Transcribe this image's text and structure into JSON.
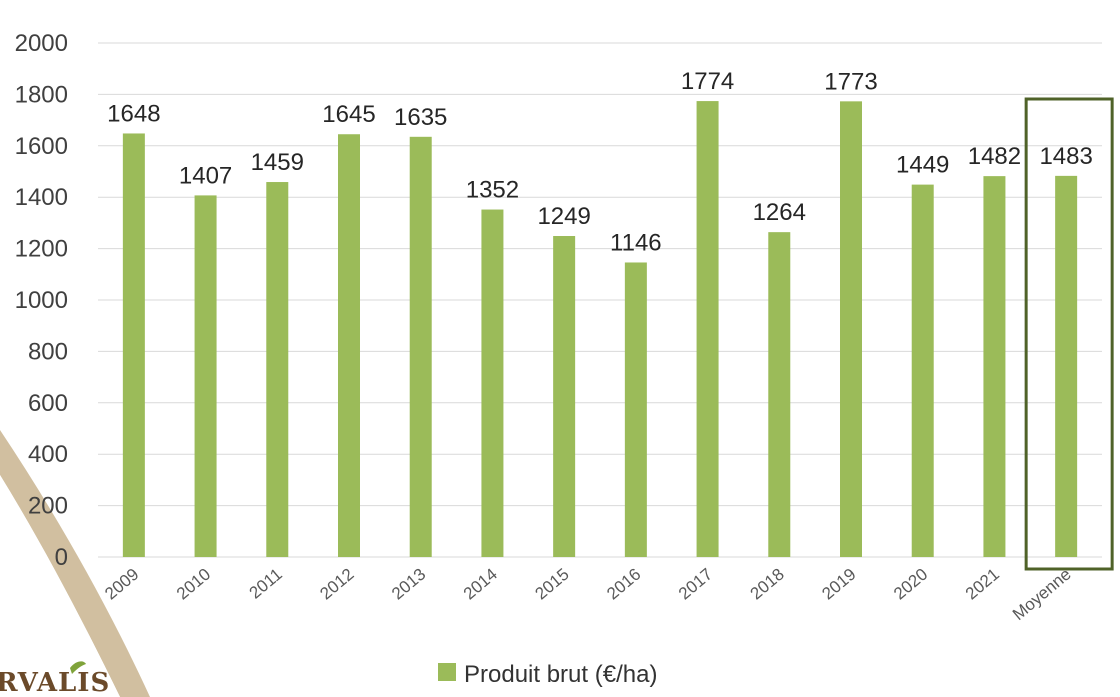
{
  "chart_data": {
    "type": "bar",
    "categories": [
      "2009",
      "2010",
      "2011",
      "2012",
      "2013",
      "2014",
      "2015",
      "2016",
      "2017",
      "2018",
      "2019",
      "2020",
      "2021",
      "Moyenne"
    ],
    "series": [
      {
        "name": "Produit brut (€/ha)",
        "values": [
          1648,
          1407,
          1459,
          1645,
          1635,
          1352,
          1249,
          1146,
          1774,
          1264,
          1773,
          1449,
          1482,
          1483
        ]
      }
    ],
    "yticks": [
      0,
      200,
      400,
      600,
      800,
      1000,
      1200,
      1400,
      1600,
      1800,
      2000
    ],
    "ylim": [
      0,
      2000
    ],
    "grid": true,
    "legend": "bottom",
    "highlighted_category": "Moyenne",
    "colors": {
      "bar": "#9bbb59",
      "highlight_box": "#4f6228",
      "grid": "#d9d9d9",
      "decor_band": "#c9b48f"
    }
  },
  "logo": {
    "text": "RVALIS"
  }
}
